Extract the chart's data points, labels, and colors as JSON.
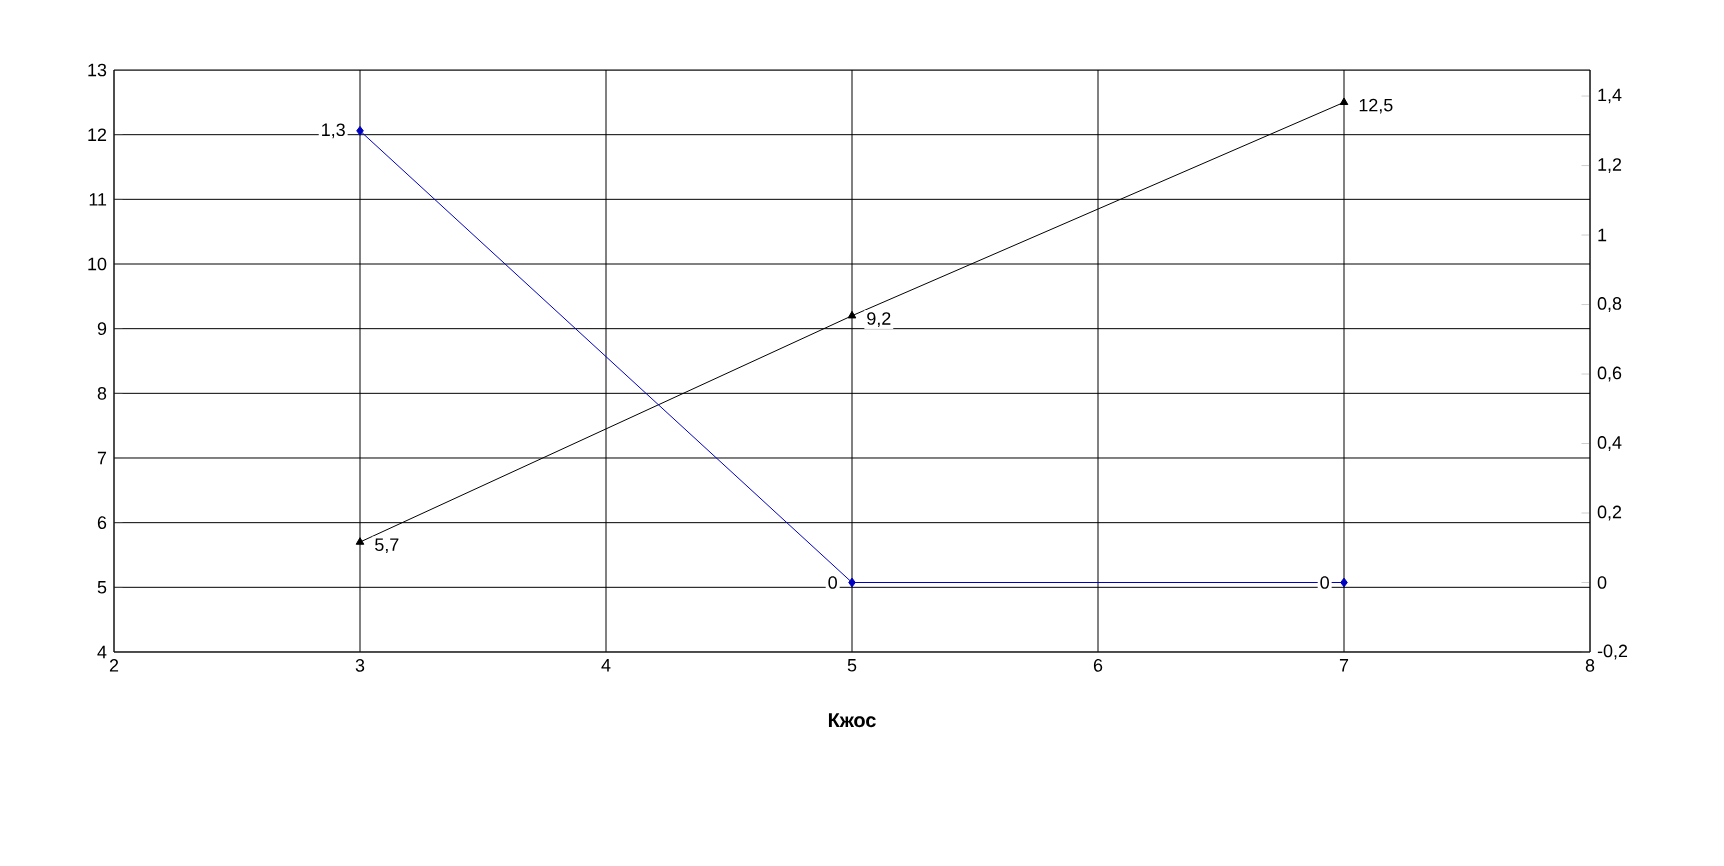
{
  "chart_data": {
    "type": "line",
    "xlabel": "Кжос",
    "x": [
      3,
      5,
      7
    ],
    "xlim": [
      2,
      8
    ],
    "xticks": [
      2,
      3,
      4,
      5,
      6,
      7,
      8
    ],
    "ylim": [
      4,
      13
    ],
    "yticks": [
      4,
      5,
      6,
      7,
      8,
      9,
      10,
      11,
      12,
      13
    ],
    "y2lim": [
      -0.2,
      1.475
    ],
    "y2ticks": [
      {
        "value": -0.2,
        "label": "-0,2"
      },
      0,
      {
        "value": 0.2,
        "label": "0,2"
      },
      {
        "value": 0.4,
        "label": "0,4"
      },
      {
        "value": 0.6,
        "label": "0,6"
      },
      {
        "value": 0.8,
        "label": "0,8"
      },
      1,
      {
        "value": 1.2,
        "label": "1,2"
      },
      {
        "value": 1.4,
        "label": "1,4"
      }
    ],
    "grid": true,
    "series": [
      {
        "color": "#000000",
        "marker": "triangle",
        "values": [
          5.7,
          9.2,
          12.5
        ],
        "value_labels": [
          "5,7",
          "9,2",
          "12,5"
        ]
      },
      {
        "color": "#0000c0",
        "marker": "diamond",
        "axis": "y2",
        "values": [
          1.3,
          0,
          0
        ],
        "value_labels": [
          "1,3",
          "0",
          "0"
        ]
      }
    ]
  }
}
